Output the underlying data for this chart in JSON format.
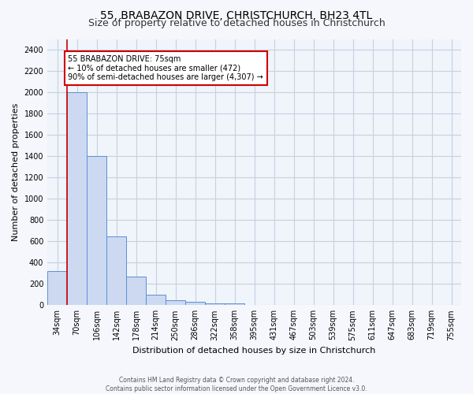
{
  "title": "55, BRABAZON DRIVE, CHRISTCHURCH, BH23 4TL",
  "subtitle": "Size of property relative to detached houses in Christchurch",
  "xlabel": "Distribution of detached houses by size in Christchurch",
  "ylabel": "Number of detached properties",
  "footer_line1": "Contains HM Land Registry data © Crown copyright and database right 2024.",
  "footer_line2": "Contains public sector information licensed under the Open Government Licence v3.0.",
  "categories": [
    "34sqm",
    "70sqm",
    "106sqm",
    "142sqm",
    "178sqm",
    "214sqm",
    "250sqm",
    "286sqm",
    "322sqm",
    "358sqm",
    "395sqm",
    "431sqm",
    "467sqm",
    "503sqm",
    "539sqm",
    "575sqm",
    "611sqm",
    "647sqm",
    "683sqm",
    "719sqm",
    "755sqm"
  ],
  "bar_values": [
    320,
    2000,
    1400,
    650,
    270,
    100,
    45,
    35,
    20,
    15,
    0,
    0,
    0,
    0,
    0,
    0,
    0,
    0,
    0,
    0,
    0
  ],
  "bar_color": "#ccd9f0",
  "bar_edge_color": "#5b8fd4",
  "marker_line_color": "#cc0000",
  "annotation_text": "55 BRABAZON DRIVE: 75sqm\n← 10% of detached houses are smaller (472)\n90% of semi-detached houses are larger (4,307) →",
  "annotation_box_color": "#ffffff",
  "annotation_box_edge": "#cc0000",
  "ylim": [
    0,
    2500
  ],
  "yticks": [
    0,
    200,
    400,
    600,
    800,
    1000,
    1200,
    1400,
    1600,
    1800,
    2000,
    2200,
    2400
  ],
  "bg_color": "#f5f7fc",
  "plot_bg_color": "#f0f4fb",
  "grid_color": "#c8d0e0",
  "title_fontsize": 10,
  "subtitle_fontsize": 9,
  "ylabel_fontsize": 8,
  "xlabel_fontsize": 8,
  "tick_fontsize": 7,
  "footer_fontsize": 5.5
}
